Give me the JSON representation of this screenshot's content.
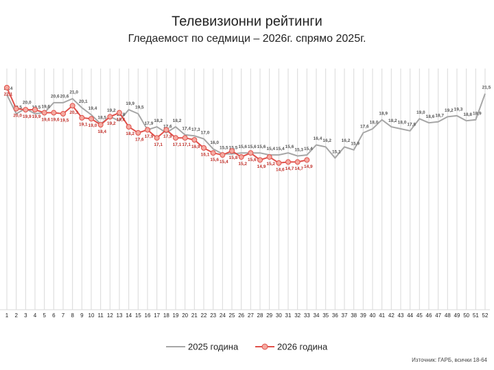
{
  "chart_data": {
    "type": "line",
    "title": "Телевизионни рейтинги",
    "subtitle": "Гледаемост по седмици – 2026г. спрямо 2025г.",
    "source": "Източник: ГАРБ, всички 18-64",
    "categories": [
      1,
      2,
      3,
      4,
      5,
      6,
      7,
      8,
      9,
      10,
      11,
      12,
      13,
      14,
      15,
      16,
      17,
      18,
      19,
      20,
      21,
      22,
      23,
      24,
      25,
      26,
      27,
      28,
      29,
      30,
      31,
      32,
      33,
      34,
      35,
      36,
      37,
      38,
      39,
      40,
      41,
      42,
      43,
      44,
      45,
      46,
      47,
      48,
      49,
      50,
      51,
      52
    ],
    "ylim": [
      0,
      24
    ],
    "grid": true,
    "legend": "bottom",
    "series": [
      {
        "name": "2025 година",
        "color": "#a6a6a6",
        "values": [
          21.4,
          19.5,
          20.0,
          19.5,
          19.6,
          20.6,
          20.6,
          21.0,
          20.1,
          19.4,
          18.5,
          19.2,
          18.8,
          19.9,
          19.5,
          17.9,
          18.2,
          17.6,
          18.2,
          17.4,
          17.3,
          17.0,
          16.0,
          15.5,
          15.5,
          15.6,
          15.6,
          15.6,
          15.4,
          15.4,
          15.6,
          15.3,
          15.4,
          16.4,
          16.2,
          15.1,
          16.2,
          15.9,
          17.6,
          18.0,
          18.9,
          18.2,
          18.0,
          17.8,
          19.0,
          18.6,
          18.7,
          19.2,
          19.3,
          18.8,
          18.9,
          21.5
        ],
        "value_labels": [
          "21,4",
          "19,5",
          "20,0",
          "19,5",
          "19,6",
          "20,6",
          "20,6",
          "21,0",
          "20,1",
          "19,4",
          "18,5",
          "19,2",
          "18,8",
          "19,9",
          "19,5",
          "17,9",
          "18,2",
          "17,6",
          "18,2",
          "17,4",
          "17,3",
          "17,0",
          "16,0",
          "15,5",
          "15,5",
          "15,6",
          "15,6",
          "15,6",
          "15,4",
          "15,4",
          "15,6",
          "15,3",
          "15,4",
          "16,4",
          "16,2",
          "15,1",
          "16,2",
          "15,9",
          "17,6",
          "18,0",
          "18,9",
          "18,2",
          "18,0",
          "17,8",
          "19,0",
          "18,6",
          "18,7",
          "19,2",
          "19,3",
          "18,8",
          "18,9",
          "21,5"
        ]
      },
      {
        "name": "2026 година",
        "color": "#e0504a",
        "marker_fill": "#f4a9a0",
        "values": [
          22.1,
          20.0,
          19.9,
          19.9,
          19.6,
          19.6,
          19.5,
          20.3,
          19.1,
          19.0,
          18.4,
          19.2,
          19.6,
          18.2,
          17.6,
          17.9,
          17.1,
          17.9,
          17.1,
          17.1,
          16.9,
          16.1,
          15.6,
          15.4,
          15.8,
          15.2,
          15.6,
          14.9,
          15.2,
          14.6,
          14.7,
          14.7,
          14.9,
          null,
          null,
          null,
          null,
          null,
          null,
          null,
          null,
          null,
          null,
          null,
          null,
          null,
          null,
          null,
          null,
          null,
          null,
          null
        ],
        "value_labels": [
          "22,1",
          "20,0",
          "19,9",
          "19,9",
          "19,6",
          "19,6",
          "19,5",
          "20,3",
          "19,1",
          "19,0",
          "18,4",
          "19,2",
          "19,6",
          "18,2",
          "17,6",
          "17,9",
          "17,1",
          "17,9",
          "17,1",
          "17,1",
          "16,9",
          "16,1",
          "15,6",
          "15,4",
          "15,8",
          "15,2",
          "15,6",
          "14,9",
          "15,2",
          "14,6",
          "14,7",
          "14,7",
          "14,9",
          null,
          null,
          null,
          null,
          null,
          null,
          null,
          null,
          null,
          null,
          null,
          null,
          null,
          null,
          null,
          null,
          null,
          null,
          null
        ]
      }
    ]
  }
}
